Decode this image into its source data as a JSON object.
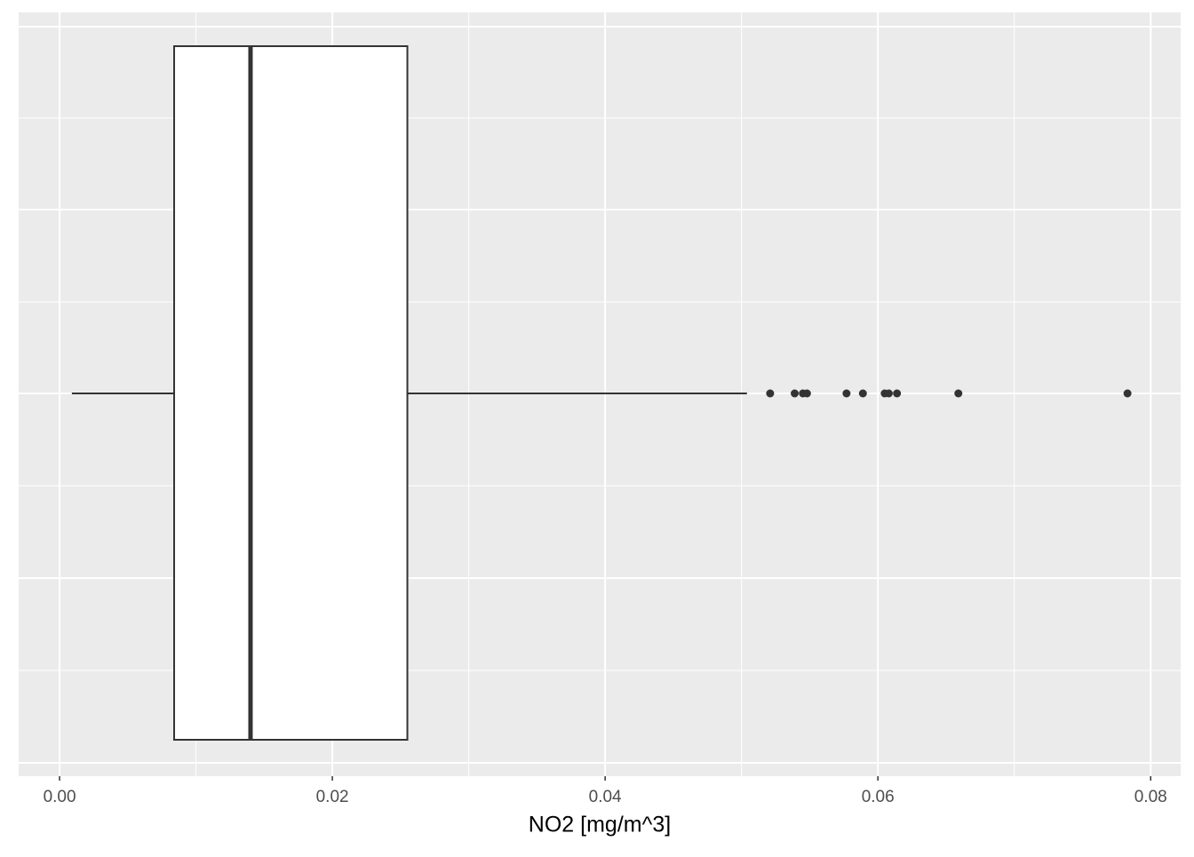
{
  "chart_data": {
    "type": "boxplot",
    "orientation": "horizontal",
    "x_label": "NO2 [mg/m^3]",
    "boxes": [
      {
        "whisker_low": 0.0009,
        "q1": 0.0084,
        "median": 0.014,
        "q3": 0.0255,
        "whisker_high": 0.0504,
        "outliers": [
          0.0521,
          0.0539,
          0.0545,
          0.0548,
          0.0577,
          0.0589,
          0.0605,
          0.0608,
          0.0614,
          0.0659,
          0.0783
        ]
      }
    ],
    "xlim": [
      -0.003,
      0.0822
    ],
    "xticks": [
      {
        "value": 0,
        "label": "0.00"
      },
      0.02,
      0.04,
      0.06,
      0.08
    ],
    "grid": true,
    "panel_color": "#ebebeb",
    "box_fill": "#ffffff",
    "line_color": "#333333"
  }
}
